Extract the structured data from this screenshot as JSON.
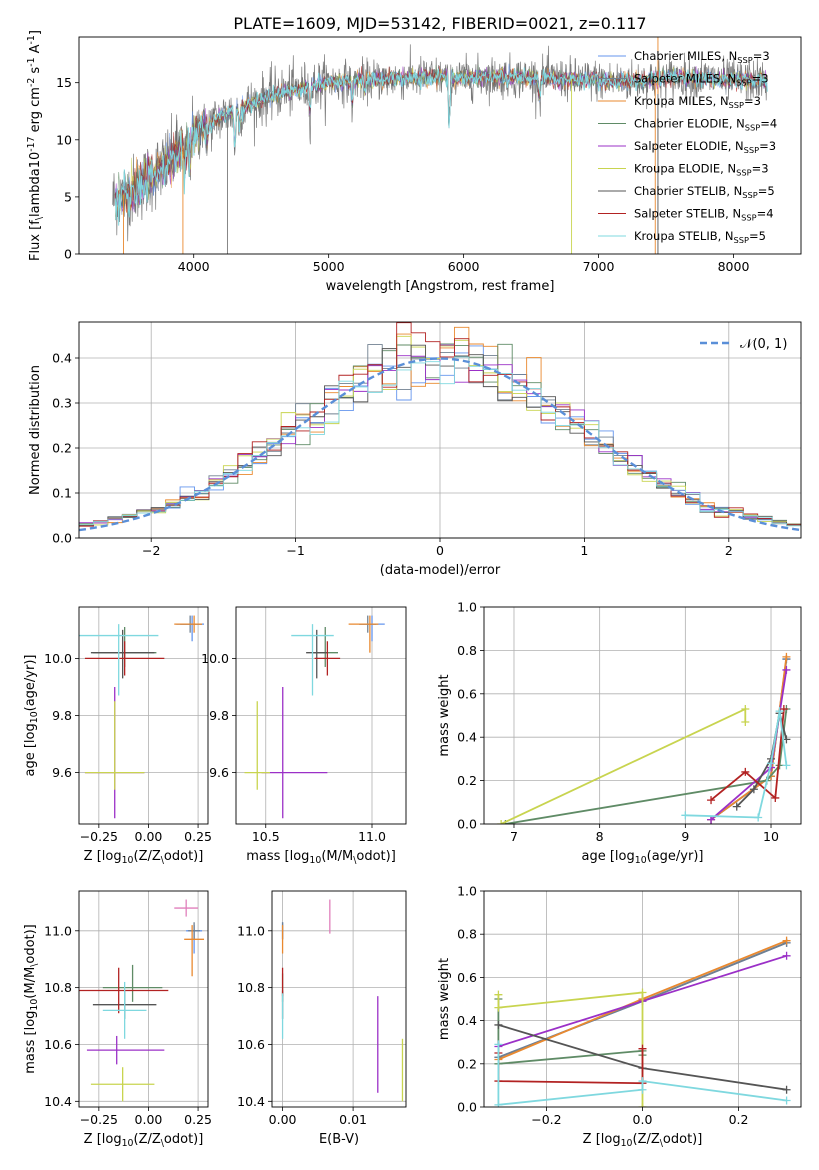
{
  "title": "PLATE=1609, MJD=53142, FIBERID=0021, z=0.117",
  "legend_labels": [
    "Chabrier MILES, N$_{SSP}$=3",
    "Salpeter MILES, N$_{SSP}$=3",
    "Kroupa MILES, N$_{SSP}$=3",
    "Chabrier ELODIE, N$_{SSP}$=4",
    "Salpeter ELODIE, N$_{SSP}$=3",
    "Kroupa ELODIE, N$_{SSP}$=3",
    "Chabrier STELIB, N$_{SSP}$=5",
    "Salpeter STELIB, N$_{SSP}$=4",
    "Kroupa STELIB, N$_{SSP}$=5"
  ],
  "colors": [
    "#6495ed",
    "#708090",
    "#e9892f",
    "#5f8b66",
    "#9b30c7",
    "#c8d44f",
    "#555555",
    "#b22222",
    "#7fd8df"
  ],
  "chart_data": [
    {
      "id": "spectrum",
      "type": "line",
      "title": "PLATE=1609, MJD=53142, FIBERID=0021, z=0.117",
      "xlabel": "wavelength [Angstrom, rest frame]",
      "ylabel": "Flux [f$_\\lambda$10$^{-17}$ erg cm$^{-2}$ s$^{-1}$ A$^{-1}$]",
      "xlim": [
        3150,
        8500
      ],
      "ylim": [
        0,
        19
      ],
      "xticks": [
        4000,
        5000,
        6000,
        7000,
        8000
      ],
      "yticks": [
        0,
        5,
        10,
        15
      ],
      "grid": false,
      "legend_position": "right",
      "continuum": [
        [
          3400,
          4.8
        ],
        [
          3550,
          5.5
        ],
        [
          3700,
          7.0
        ],
        [
          3850,
          8.5
        ],
        [
          4000,
          10.5
        ],
        [
          4200,
          12.0
        ],
        [
          4400,
          13.0
        ],
        [
          4600,
          14.0
        ],
        [
          4800,
          14.5
        ],
        [
          5000,
          15.0
        ],
        [
          5200,
          15.2
        ],
        [
          5400,
          15.3
        ],
        [
          5600,
          15.4
        ],
        [
          5800,
          15.5
        ],
        [
          6000,
          15.4
        ],
        [
          6200,
          15.5
        ],
        [
          6400,
          15.5
        ],
        [
          6600,
          15.4
        ],
        [
          6800,
          15.3
        ],
        [
          7000,
          15.2
        ],
        [
          7200,
          15.1
        ],
        [
          7400,
          15.3
        ],
        [
          7600,
          15.5
        ],
        [
          7800,
          15.4
        ],
        [
          8000,
          15.2
        ],
        [
          8250,
          15.2
        ]
      ],
      "absorption_features": [
        [
          3933,
          7.0
        ],
        [
          3968,
          7.5
        ],
        [
          4102,
          10.0
        ],
        [
          4304,
          9.0
        ],
        [
          4340,
          11.0
        ],
        [
          4861,
          12.5
        ],
        [
          5175,
          13.0
        ],
        [
          5270,
          14.0
        ],
        [
          5893,
          11.0
        ],
        [
          6563,
          13.5
        ]
      ]
    },
    {
      "id": "residual_histogram",
      "type": "bar",
      "xlabel": "(data-model)/error",
      "ylabel": "Normed distribution",
      "xlim": [
        -2.5,
        2.5
      ],
      "ylim": [
        0,
        0.48
      ],
      "xticks": [
        -2,
        -1,
        0,
        1,
        2
      ],
      "yticks": [
        0.0,
        0.1,
        0.2,
        0.3,
        0.4
      ],
      "grid": true,
      "legend_position": "top-right",
      "reference_label": "$\\mathcal{N}(0, 1)$",
      "bin_width": 0.1
    },
    {
      "id": "age_vs_Z",
      "type": "scatter",
      "xlabel": "Z [log$_{10}$($Z/Z_\\odot$)]",
      "ylabel": "age  [log$_{10}$($age/yr$)]",
      "xlim": [
        -0.35,
        0.3
      ],
      "ylim": [
        9.42,
        10.18
      ],
      "xticks": [
        -0.25,
        0.0,
        0.25
      ],
      "yticks": [
        9.6,
        9.8,
        10.0
      ],
      "grid": true,
      "points": [
        {
          "x": 0.22,
          "xe": [
            0.08,
            0.06
          ],
          "y": 10.12,
          "ye": [
            0.06,
            0.03
          ]
        },
        {
          "x": 0.21,
          "xe": [
            0.05,
            0.06
          ],
          "y": 10.12,
          "ye": [
            0.03,
            0.03
          ]
        },
        {
          "x": 0.23,
          "xe": [
            0.1,
            0.04
          ],
          "y": 10.12,
          "ye": [
            0.03,
            0.03
          ]
        },
        {
          "x": -0.12,
          "xe": [
            0.16,
            0.16
          ],
          "y": 10.02,
          "ye": [
            0.05,
            0.09
          ]
        },
        {
          "x": -0.17,
          "xe": [
            0.15,
            0.15
          ],
          "y": 9.6,
          "ye": [
            0.16,
            0.3
          ]
        },
        {
          "x": -0.17,
          "xe": [
            0.15,
            0.15
          ],
          "y": 9.6,
          "ye": [
            0.06,
            0.25
          ]
        },
        {
          "x": -0.13,
          "xe": [
            0.16,
            0.16
          ],
          "y": 10.02,
          "ye": [
            0.09,
            0.08
          ]
        },
        {
          "x": -0.12,
          "xe": [
            0.2,
            0.2
          ],
          "y": 10.0,
          "ye": [
            0.06,
            0.06
          ]
        },
        {
          "x": -0.15,
          "xe": [
            0.2,
            0.2
          ],
          "y": 10.08,
          "ye": [
            0.21,
            0.04
          ]
        }
      ]
    },
    {
      "id": "age_vs_mass",
      "type": "scatter",
      "xlabel": "mass [log$_{10}$($M/M_\\odot$)]",
      "xlim": [
        10.36,
        11.16
      ],
      "ylim": [
        9.42,
        10.18
      ],
      "xticks": [
        10.5,
        11.0
      ],
      "yticks": [
        9.6,
        9.8,
        10.0
      ],
      "grid": true,
      "points": [
        {
          "x": 11.0,
          "xe": [
            0.06,
            0.06
          ],
          "y": 10.12,
          "ye": [
            0.06,
            0.03
          ]
        },
        {
          "x": 10.98,
          "xe": [
            0.04,
            0.04
          ],
          "y": 10.12,
          "ye": [
            0.03,
            0.03
          ]
        },
        {
          "x": 10.99,
          "xe": [
            0.1,
            0.04
          ],
          "y": 10.12,
          "ye": [
            0.1,
            0.03
          ]
        },
        {
          "x": 10.78,
          "xe": [
            0.06,
            0.06
          ],
          "y": 10.02,
          "ye": [
            0.05,
            0.09
          ]
        },
        {
          "x": 10.58,
          "xe": [
            0.1,
            0.21
          ],
          "y": 9.6,
          "ye": [
            0.16,
            0.3
          ]
        },
        {
          "x": 10.46,
          "xe": [
            0.06,
            0.06
          ],
          "y": 9.6,
          "ye": [
            0.06,
            0.25
          ]
        },
        {
          "x": 10.74,
          "xe": [
            0.05,
            0.05
          ],
          "y": 10.02,
          "ye": [
            0.09,
            0.08
          ]
        },
        {
          "x": 10.79,
          "xe": [
            0.06,
            0.06
          ],
          "y": 10.0,
          "ye": [
            0.06,
            0.06
          ]
        },
        {
          "x": 10.72,
          "xe": [
            0.1,
            0.1
          ],
          "y": 10.08,
          "ye": [
            0.21,
            0.04
          ]
        }
      ]
    },
    {
      "id": "weight_vs_age",
      "type": "line",
      "xlabel": "age  [log$_{10}$($age/yr$)]",
      "ylabel": "mass weight",
      "xlim": [
        6.65,
        10.35
      ],
      "ylim": [
        0.0,
        1.0
      ],
      "xticks": [
        7,
        8,
        9,
        10
      ],
      "yticks": [
        0.0,
        0.2,
        0.4,
        0.6,
        0.8,
        1.0
      ],
      "grid": true,
      "series": [
        {
          "x": [
            9.3,
            10.0,
            10.18
          ],
          "y": [
            0.02,
            0.22,
            0.76
          ]
        },
        {
          "x": [
            9.3,
            10.0,
            10.18
          ],
          "y": [
            0.02,
            0.22,
            0.76
          ]
        },
        {
          "x": [
            9.3,
            10.0,
            10.18
          ],
          "y": [
            0.02,
            0.22,
            0.77
          ]
        },
        {
          "x": [
            6.9,
            9.95,
            10.1,
            10.18
          ],
          "y": [
            0.0,
            0.2,
            0.27,
            0.53
          ]
        },
        {
          "x": [
            9.3,
            10.0,
            10.18
          ],
          "y": [
            0.02,
            0.26,
            0.71
          ]
        },
        {
          "x": [
            6.85,
            9.7,
            9.7
          ],
          "y": [
            0.0,
            0.53,
            0.47
          ]
        },
        {
          "x": [
            9.6,
            9.8,
            10.0,
            10.1,
            10.18
          ],
          "y": [
            0.08,
            0.16,
            0.3,
            0.51,
            0.39
          ]
        },
        {
          "x": [
            9.3,
            9.7,
            10.05,
            10.15
          ],
          "y": [
            0.11,
            0.24,
            0.12,
            0.53
          ]
        },
        {
          "x": [
            9.0,
            9.85,
            10.0,
            10.1,
            10.18
          ],
          "y": [
            0.04,
            0.03,
            0.28,
            0.52,
            0.27
          ]
        }
      ]
    },
    {
      "id": "mass_vs_Z",
      "type": "scatter",
      "xlabel": "Z [log$_{10}$($Z/Z_\\odot$)]",
      "ylabel": "mass [log$_{10}$($M/M_\\odot$)]",
      "xlim": [
        -0.35,
        0.3
      ],
      "ylim": [
        10.38,
        11.14
      ],
      "xticks": [
        -0.25,
        0.0,
        0.25
      ],
      "yticks": [
        10.4,
        10.6,
        10.8,
        11.0
      ],
      "grid": true,
      "points": [
        {
          "x": 0.23,
          "xe": [
            0.04,
            0.04
          ],
          "y": 11.0,
          "ye": [
            0.08,
            0.02
          ]
        },
        {
          "x": 0.23,
          "xe": [
            0.03,
            0.03
          ],
          "y": 11.0,
          "ye": [
            0.03,
            0.03
          ]
        },
        {
          "x": 0.22,
          "xe": [
            0.04,
            0.06
          ],
          "y": 10.97,
          "ye": [
            0.13,
            0.05
          ]
        },
        {
          "x": -0.08,
          "xe": [
            0.15,
            0.15
          ],
          "y": 10.8,
          "ye": [
            0.05,
            0.08
          ]
        },
        {
          "x": -0.16,
          "xe": [
            0.15,
            0.24
          ],
          "y": 10.58,
          "ye": [
            0.05,
            0.05
          ]
        },
        {
          "x": -0.13,
          "xe": [
            0.16,
            0.16
          ],
          "y": 10.46,
          "ye": [
            0.06,
            0.06
          ]
        },
        {
          "x": -0.12,
          "xe": [
            0.16,
            0.16
          ],
          "y": 10.74,
          "ye": [
            0.05,
            0.05
          ]
        },
        {
          "x": -0.15,
          "xe": [
            0.25,
            0.25
          ],
          "y": 10.79,
          "ye": [
            0.08,
            0.08
          ]
        },
        {
          "x": -0.12,
          "xe": [
            0.11,
            0.11
          ],
          "y": 10.72,
          "ye": [
            0.1,
            0.1
          ]
        }
      ],
      "extra_points": [
        {
          "x": 0.19,
          "xe": [
            0.06,
            0.06
          ],
          "y": 11.08,
          "ye": [
            0.03,
            0.03
          ],
          "color": "#e07fbc"
        }
      ]
    },
    {
      "id": "mass_vs_ebv",
      "type": "scatter",
      "xlabel": "E(B-V)",
      "xlim": [
        -0.0015,
        0.0175
      ],
      "ylim": [
        10.38,
        11.14
      ],
      "xticks": [
        0.0,
        0.01
      ],
      "yticks": [
        10.4,
        10.6,
        10.8,
        11.0
      ],
      "grid": true,
      "points": [
        {
          "x": 0.0,
          "y": 11.0,
          "ye": [
            0.03,
            0.03
          ]
        },
        {
          "x": 0.0,
          "y": 11.0,
          "ye": [
            0.03,
            0.03
          ]
        },
        {
          "x": 0.0,
          "y": 10.97,
          "ye": [
            0.05,
            0.05
          ]
        },
        {
          "x": 0.0,
          "y": 10.8,
          "ye": [
            0.05,
            0.05
          ]
        },
        {
          "x": 0.0135,
          "y": 10.6,
          "ye": [
            0.17,
            0.17
          ]
        },
        {
          "x": 0.017,
          "y": 10.51,
          "ye": [
            0.11,
            0.11
          ]
        },
        {
          "x": 0.0,
          "y": 10.74,
          "ye": [
            0.05,
            0.05
          ]
        },
        {
          "x": 0.0,
          "y": 10.82,
          "ye": [
            0.05,
            0.05
          ]
        },
        {
          "x": 0.0,
          "y": 10.7,
          "ye": [
            0.08,
            0.08
          ]
        }
      ],
      "extra_points": [
        {
          "x": 0.0067,
          "y": 11.05,
          "ye": [
            0.06,
            0.06
          ],
          "color": "#e07fbc"
        }
      ]
    },
    {
      "id": "weight_vs_Z",
      "type": "line",
      "xlabel": "Z [log$_{10}$($Z/Z_\\odot$)]",
      "ylabel": "mass weight",
      "xlim": [
        -0.33,
        0.33
      ],
      "ylim": [
        0.0,
        1.0
      ],
      "xticks": [
        -0.2,
        0.0,
        0.2
      ],
      "yticks": [
        0.0,
        0.2,
        0.4,
        0.6,
        0.8,
        1.0
      ],
      "grid": true,
      "series": [
        {
          "x": [
            -0.3,
            0.0,
            0.3
          ],
          "y": [
            0.23,
            0.49,
            0.76
          ]
        },
        {
          "x": [
            -0.3,
            0.0,
            0.3
          ],
          "y": [
            0.23,
            0.49,
            0.76
          ]
        },
        {
          "x": [
            -0.3,
            0.0,
            0.3
          ],
          "y": [
            0.22,
            0.5,
            0.77
          ]
        },
        {
          "x": [
            -0.3,
            -0.3,
            0.0,
            0.0
          ],
          "y": [
            0.5,
            0.2,
            0.26,
            0.24
          ]
        },
        {
          "x": [
            -0.3,
            0.0,
            0.3
          ],
          "y": [
            0.28,
            0.49,
            0.7
          ]
        },
        {
          "x": [
            -0.3,
            -0.3,
            0.0,
            0.0
          ],
          "y": [
            0.52,
            0.46,
            0.53,
            0.0
          ]
        },
        {
          "x": [
            -0.3,
            0.0,
            0.3
          ],
          "y": [
            0.38,
            0.18,
            0.08
          ]
        },
        {
          "x": [
            -0.3,
            -0.3,
            0.0,
            0.0
          ],
          "y": [
            0.25,
            0.12,
            0.11,
            0.27
          ]
        },
        {
          "x": [
            -0.3,
            -0.3,
            0.0,
            0.0,
            0.3
          ],
          "y": [
            0.29,
            0.01,
            0.08,
            0.12,
            0.03
          ]
        }
      ]
    }
  ]
}
